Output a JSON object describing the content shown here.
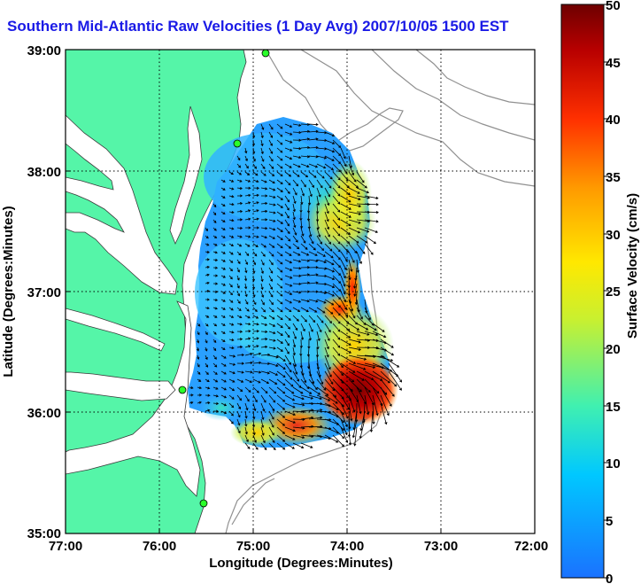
{
  "title": "Southern Mid-Atlantic Raw Velocities (1 Day Avg) 2007/10/05 1500 EST",
  "xlabel": "Longitude (Degrees:Minutes)",
  "ylabel": "Latitude (Degrees:Minutes)",
  "x_ticks": [
    "77:00",
    "76:00",
    "75:00",
    "74:00",
    "73:00",
    "72:00"
  ],
  "y_ticks": [
    "39:00",
    "38:00",
    "37:00",
    "36:00",
    "35:00"
  ],
  "colorbar": {
    "label": "Surface Velocity (cm/s)",
    "ticks": [
      "0",
      "5",
      "10",
      "15",
      "20",
      "25",
      "30",
      "35",
      "40",
      "45",
      "50"
    ],
    "range": [
      0,
      50
    ],
    "colors": [
      "#1a72ff",
      "#00c8ff",
      "#40f0b0",
      "#c8f030",
      "#ffe800",
      "#ff9a00",
      "#ff3000",
      "#b80000",
      "#6e0000"
    ]
  },
  "colors": {
    "land": "#55f5a8",
    "title": "#1a1ae6",
    "contour": "#909090"
  },
  "stations": [
    "station-cape-may",
    "station-wildwood",
    "station-duck",
    "station-hatteras"
  ]
}
